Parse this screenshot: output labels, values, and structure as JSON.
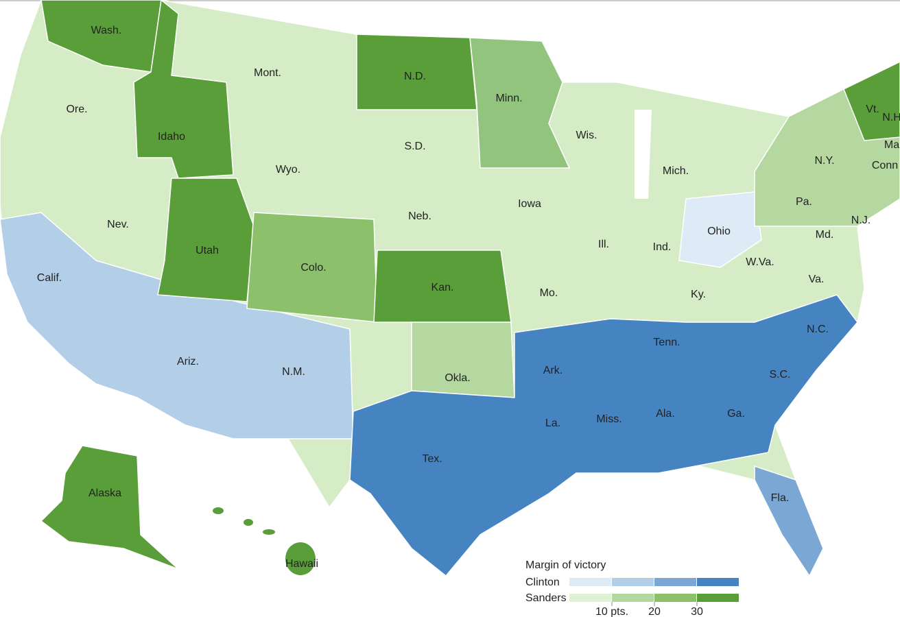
{
  "states": [
    {
      "label": "Wash."
    },
    {
      "label": "Mont."
    },
    {
      "label": "N.D."
    },
    {
      "label": "Minn."
    },
    {
      "label": "Ore."
    },
    {
      "label": "Idaho"
    },
    {
      "label": "Wyo."
    },
    {
      "label": "S.D."
    },
    {
      "label": "Wis."
    },
    {
      "label": "Mich."
    },
    {
      "label": "N.Y."
    },
    {
      "label": "Vt."
    },
    {
      "label": "N.H"
    },
    {
      "label": "Ma"
    },
    {
      "label": "Conn"
    },
    {
      "label": "Pa."
    },
    {
      "label": "N.J."
    },
    {
      "label": "Md."
    },
    {
      "label": "Iowa"
    },
    {
      "label": "Neb."
    },
    {
      "label": "Nev."
    },
    {
      "label": "Utah"
    },
    {
      "label": "Colo."
    },
    {
      "label": "Ill."
    },
    {
      "label": "Ind."
    },
    {
      "label": "Ohio"
    },
    {
      "label": "W.Va."
    },
    {
      "label": "Va."
    },
    {
      "label": "Calif."
    },
    {
      "label": "Kan."
    },
    {
      "label": "Mo."
    },
    {
      "label": "Ky."
    },
    {
      "label": "Tenn."
    },
    {
      "label": "N.C."
    },
    {
      "label": "Ariz."
    },
    {
      "label": "N.M."
    },
    {
      "label": "Okla."
    },
    {
      "label": "Ark."
    },
    {
      "label": "S.C."
    },
    {
      "label": "Miss."
    },
    {
      "label": "Ala."
    },
    {
      "label": "Ga."
    },
    {
      "label": "La."
    },
    {
      "label": "Tex."
    },
    {
      "label": "Fla."
    },
    {
      "label": "Alaska"
    },
    {
      "label": "Hawaii"
    }
  ],
  "legend": {
    "title": "Margin of victory",
    "rows": [
      {
        "label": "Clinton",
        "colors": [
          "#deebf7",
          "#b3cfe8",
          "#7ba7d4",
          "#4584c1"
        ]
      },
      {
        "label": "Sanders",
        "colors": [
          "#dff2d6",
          "#b5d8a1",
          "#8cc06b",
          "#5a9e3a"
        ]
      }
    ],
    "ticks": [
      {
        "value": 10,
        "label": "10 pts."
      },
      20,
      30
    ]
  }
}
